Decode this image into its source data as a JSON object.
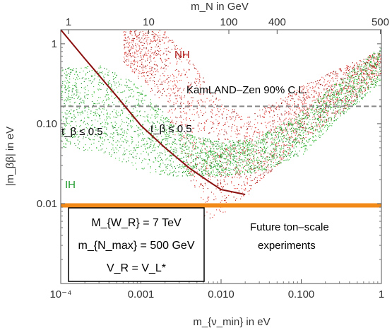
{
  "chart_data": {
    "type": "scatter",
    "x_scale": "log",
    "y_scale": "log",
    "xlim": [
      0.0001,
      1
    ],
    "ylim": [
      0.001,
      1.5
    ],
    "x_ticks": [
      {
        "value": 0.0001,
        "label": "10⁻⁴"
      },
      {
        "value": 0.001,
        "label": "0.001"
      },
      {
        "value": 0.01,
        "label": "0.010"
      },
      {
        "value": 0.1,
        "label": "0.100"
      },
      {
        "value": 1,
        "label": "1"
      }
    ],
    "y_ticks": [
      {
        "value": 1,
        "label": "1"
      },
      {
        "value": 0.1,
        "label": "0.10"
      },
      {
        "value": 0.01,
        "label": "0.01"
      }
    ],
    "top_ticks": [
      {
        "value": 0.000125,
        "label": "1"
      },
      {
        "value": 0.00125,
        "label": "10"
      },
      {
        "value": 0.0125,
        "label": "100"
      },
      {
        "value": 0.05,
        "label": "400"
      },
      {
        "value": 0.97,
        "label": "500"
      }
    ],
    "xlabel": "m_{ν_min} in eV",
    "ylabel": "|m_ββ| in eV",
    "top_label": "m_N in GeV",
    "colors": {
      "nh": "#e8554f",
      "nh_dark": "#9e1a1a",
      "ih": "#4cc44c",
      "ih_dark": "#1c8a2a",
      "kamland": "#888888",
      "future": "#f28a1a",
      "curve": "#8b1010"
    },
    "reference_lines": [
      {
        "name": "KamLAND-Zen 90% C.L.",
        "y": 0.165,
        "style": "dashed"
      },
      {
        "name": "Future ton-scale experiments",
        "y": 0.0095,
        "style": "solid"
      }
    ],
    "series": [
      {
        "name": "NH",
        "band": [
          {
            "x": 0.0006,
            "lo": 0.6,
            "hi": 1.5
          },
          {
            "x": 0.002,
            "lo": 0.16,
            "hi": 1.5
          },
          {
            "x": 0.004,
            "lo": 0.02,
            "hi": 0.7
          },
          {
            "x": 0.006,
            "lo": 0.006,
            "hi": 0.4
          },
          {
            "x": 0.01,
            "lo": 0.007,
            "hi": 0.2
          },
          {
            "x": 0.02,
            "lo": 0.012,
            "hi": 0.12
          },
          {
            "x": 0.05,
            "lo": 0.03,
            "hi": 0.2
          },
          {
            "x": 0.1,
            "lo": 0.06,
            "hi": 0.3
          },
          {
            "x": 0.3,
            "lo": 0.13,
            "hi": 0.5
          },
          {
            "x": 1,
            "lo": 0.4,
            "hi": 0.85
          }
        ]
      },
      {
        "name": "IH",
        "band": [
          {
            "x": 0.0001,
            "lo": 0.05,
            "hi": 0.5
          },
          {
            "x": 0.0003,
            "lo": 0.045,
            "hi": 0.55
          },
          {
            "x": 0.001,
            "lo": 0.025,
            "hi": 0.3
          },
          {
            "x": 0.003,
            "lo": 0.022,
            "hi": 0.08
          },
          {
            "x": 0.01,
            "lo": 0.022,
            "hi": 0.06
          },
          {
            "x": 0.03,
            "lo": 0.025,
            "hi": 0.07
          },
          {
            "x": 0.1,
            "lo": 0.04,
            "hi": 0.14
          },
          {
            "x": 0.3,
            "lo": 0.12,
            "hi": 0.36
          },
          {
            "x": 1,
            "lo": 0.32,
            "hi": 0.95
          }
        ]
      },
      {
        "name": "t_β ≤ 0.5 boundary",
        "x": [
          0.0001,
          0.0002,
          0.0005,
          0.001,
          0.002,
          0.004,
          0.007,
          0.01,
          0.02
        ],
        "values": [
          1.5,
          0.65,
          0.22,
          0.095,
          0.05,
          0.028,
          0.019,
          0.015,
          0.013
        ]
      }
    ],
    "annotations": {
      "nh": "NH",
      "ih": "IH",
      "kamland": "KamLAND–Zen 90% C.L.",
      "tbeta_left": "t_β ≤ 0.5",
      "tbeta_mid": "t_β ≤ 0.5",
      "future_1": "Future ton–scale",
      "future_2": "experiments"
    },
    "legend_box": {
      "line1": "M_{W_R} = 7 TeV",
      "line2": "m_{N_max} = 500 GeV",
      "line3": "V_R = V_L*"
    }
  }
}
